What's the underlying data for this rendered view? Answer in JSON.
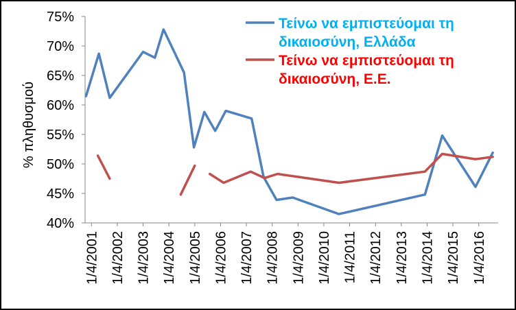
{
  "chart_data": {
    "type": "line",
    "title": "",
    "xlabel": "",
    "ylabel": "% πληθυσμού",
    "ylim": [
      40,
      75
    ],
    "ytick_values": [
      40,
      45,
      50,
      55,
      60,
      65,
      70,
      75
    ],
    "ytick_labels": [
      "40%",
      "45%",
      "50%",
      "55%",
      "60%",
      "65%",
      "70%",
      "75%"
    ],
    "xlim": [
      "2001-01-01",
      "2016-12-31"
    ],
    "xtick_labels": [
      "1/4/2001",
      "1/4/2002",
      "1/4/2003",
      "1/4/2004",
      "1/4/2005",
      "1/4/2006",
      "1/4/2007",
      "1/4/2008",
      "1/4/2009",
      "1/4/2010",
      "1/4/2011",
      "1/4/2012",
      "1/4/2013",
      "1/4/2014",
      "1/4/2015",
      "1/4/2016"
    ],
    "xtick_dates": [
      "2001-04-01",
      "2002-04-01",
      "2003-04-01",
      "2004-04-01",
      "2005-04-01",
      "2006-04-01",
      "2007-04-01",
      "2008-04-01",
      "2009-04-01",
      "2010-04-01",
      "2011-04-01",
      "2012-04-01",
      "2013-04-01",
      "2014-04-01",
      "2015-04-01",
      "2016-04-01"
    ],
    "grid": false,
    "legend_position": "top-right",
    "series": [
      {
        "name": "Τείνω να εμπιστεύομαι τη δικαιοσύνη, Ελλάδα",
        "color": "#4f81bd",
        "points": [
          {
            "x": "2001-01-15",
            "y": 61.5
          },
          {
            "x": "2001-07-15",
            "y": 68.7
          },
          {
            "x": "2001-12-15",
            "y": 61.2
          },
          {
            "x": "2003-04-01",
            "y": 69.0
          },
          {
            "x": "2003-09-15",
            "y": 68.0
          },
          {
            "x": "2004-01-15",
            "y": 72.8
          },
          {
            "x": "2004-11-01",
            "y": 65.5
          },
          {
            "x": "2005-03-20",
            "y": 52.8
          },
          {
            "x": "2005-08-15",
            "y": 58.8
          },
          {
            "x": "2006-01-15",
            "y": 55.6
          },
          {
            "x": "2006-06-15",
            "y": 59.0
          },
          {
            "x": "2007-06-15",
            "y": 57.7
          },
          {
            "x": "2007-12-01",
            "y": 47.8
          },
          {
            "x": "2008-06-01",
            "y": 43.9
          },
          {
            "x": "2009-01-15",
            "y": 44.3
          },
          {
            "x": "2010-11-01",
            "y": 41.5
          },
          {
            "x": "2014-03-01",
            "y": 44.8
          },
          {
            "x": "2014-11-01",
            "y": 54.8
          },
          {
            "x": "2016-02-15",
            "y": 46.1
          },
          {
            "x": "2016-10-15",
            "y": 51.9
          }
        ]
      },
      {
        "name": "Τείνω να εμπιστεύομαι τη δικαιοσύνη, Ε.Ε.",
        "color": "#c0504d",
        "points": [
          {
            "x": "2001-07-01",
            "y": 51.4
          },
          {
            "x": "2001-12-15",
            "y": 47.5
          },
          null,
          {
            "x": "2004-09-15",
            "y": 44.8
          },
          {
            "x": "2005-04-01",
            "y": 49.7
          },
          null,
          {
            "x": "2005-11-01",
            "y": 48.3
          },
          {
            "x": "2006-05-15",
            "y": 46.8
          },
          {
            "x": "2007-06-01",
            "y": 48.7
          },
          {
            "x": "2007-12-15",
            "y": 47.6
          },
          {
            "x": "2008-06-15",
            "y": 48.3
          },
          {
            "x": "2009-04-01",
            "y": 47.8
          },
          {
            "x": "2010-11-01",
            "y": 46.8
          },
          {
            "x": "2014-03-01",
            "y": 48.7
          },
          {
            "x": "2014-11-01",
            "y": 51.7
          },
          {
            "x": "2016-02-15",
            "y": 50.8
          },
          {
            "x": "2016-10-15",
            "y": 51.2
          }
        ]
      }
    ],
    "legend": [
      {
        "lines": [
          "Τείνω να εμπιστεύομαι τη",
          "δικαιοσύνη, Ελλάδα"
        ],
        "line_color": "#4f81bd",
        "text_color": "#00b0f0"
      },
      {
        "lines": [
          "Τείνω να εμπιστεύομαι τη",
          "δικαιοσύνη, Ε.Ε."
        ],
        "line_color": "#c0504d",
        "text_color": "#ff0000"
      }
    ]
  }
}
